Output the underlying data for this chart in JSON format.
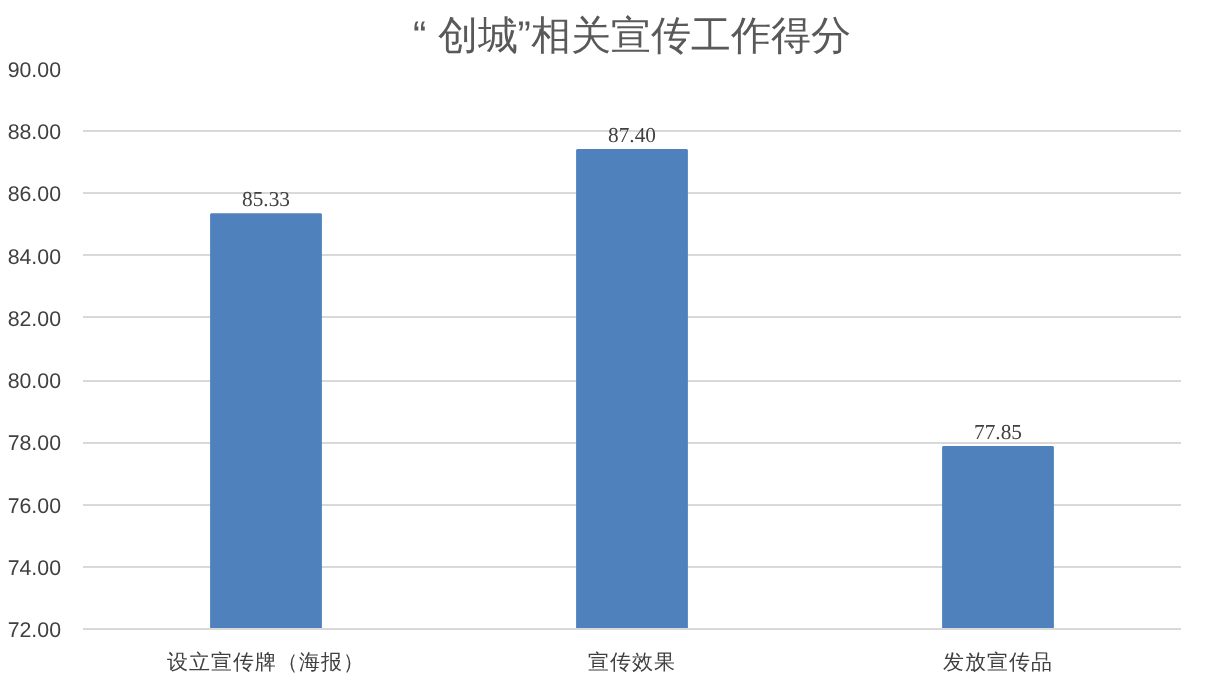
{
  "chart_data": {
    "type": "bar",
    "title": "“ 创城”相关宣传工作得分",
    "categories": [
      "设立宣传牌（海报）",
      "宣传效果",
      "发放宣传品"
    ],
    "values": [
      85.33,
      87.4,
      77.85
    ],
    "value_labels": [
      "85.33",
      "87.40",
      "77.85"
    ],
    "color": "#4f81bd",
    "ylim": [
      72,
      90
    ],
    "yticks": [
      {
        "value": 72,
        "label": "72.00"
      },
      {
        "value": 74,
        "label": "74.00"
      },
      {
        "value": 76,
        "label": "76.00"
      },
      {
        "value": 78,
        "label": "78.00"
      },
      {
        "value": 80,
        "label": "80.00"
      },
      {
        "value": 82,
        "label": "82.00"
      },
      {
        "value": 84,
        "label": "84.00"
      },
      {
        "value": 86,
        "label": "86.00"
      },
      {
        "value": 88,
        "label": "88.00"
      },
      {
        "value": 90,
        "label": "90.00"
      }
    ],
    "grid": "y"
  }
}
